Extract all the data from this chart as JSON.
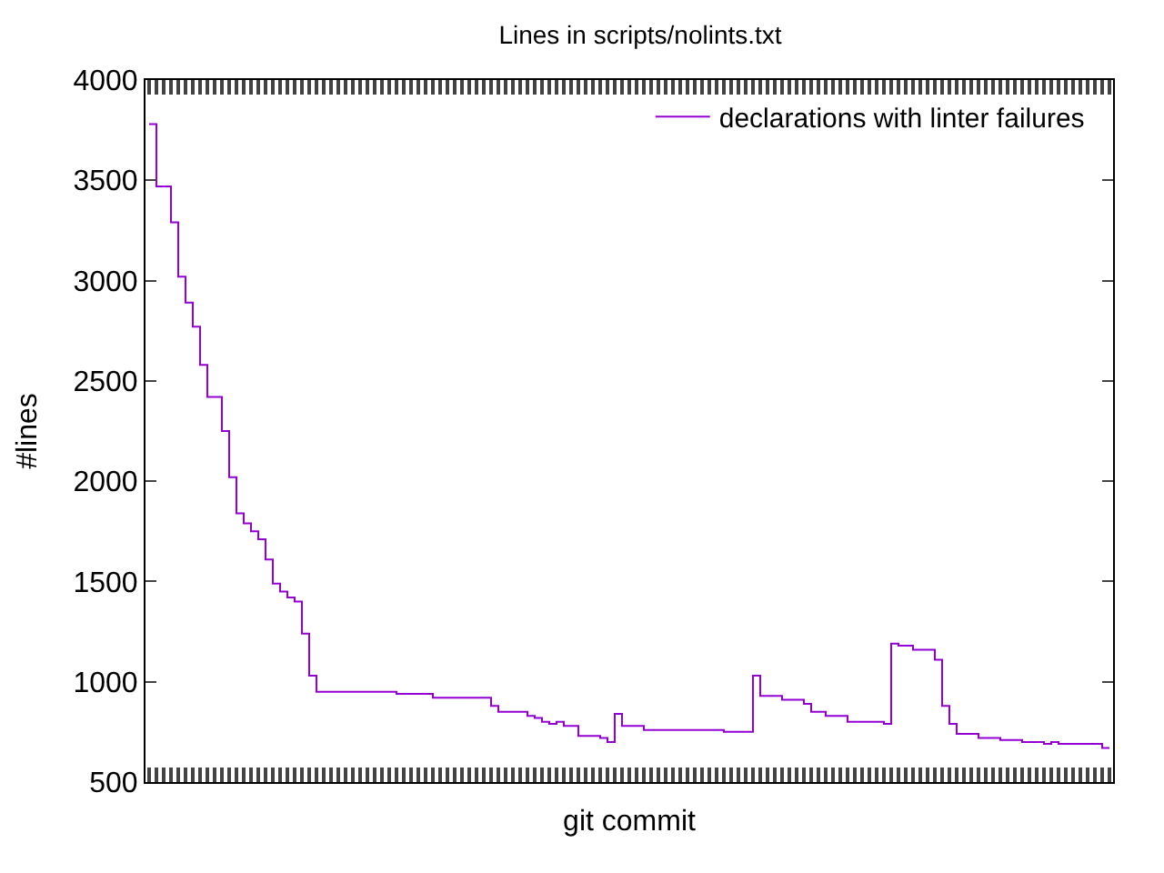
{
  "chart_data": {
    "type": "step",
    "title": "Lines in scripts/nolints.txt",
    "xlabel": "git commit",
    "ylabel": "#lines",
    "categories": [
      null,
      null,
      null,
      null,
      null,
      null,
      null,
      null,
      null,
      null,
      null,
      null,
      null,
      null,
      null,
      null,
      null,
      null,
      null,
      null,
      null,
      null,
      null,
      null,
      null,
      null,
      null,
      null,
      null,
      null,
      null,
      null,
      null,
      null,
      null,
      null,
      null,
      null,
      null,
      null,
      null,
      null,
      null,
      null,
      null,
      null,
      null,
      null,
      null,
      null,
      null,
      null,
      null,
      null,
      null,
      null,
      null,
      null,
      null,
      null,
      null,
      null,
      null,
      null,
      null,
      null,
      null,
      null,
      null,
      null,
      null,
      null,
      null,
      null,
      null,
      null,
      null,
      null,
      null,
      null,
      null,
      null,
      null,
      null,
      null,
      null,
      null,
      null,
      null,
      null,
      null,
      null,
      null,
      null,
      null,
      null,
      null,
      null,
      null,
      null,
      null,
      null,
      null,
      null,
      null,
      null,
      null,
      null,
      null,
      null,
      null,
      null,
      null,
      null,
      null,
      null,
      null,
      null,
      null,
      null,
      null,
      null,
      null,
      null,
      null,
      null,
      null,
      null,
      null,
      null,
      null,
      null,
      null
    ],
    "series": [
      {
        "name": "declarations with linter failures",
        "color": "#9400d3",
        "values": [
          3780,
          3470,
          3470,
          3290,
          3020,
          2890,
          2770,
          2580,
          2420,
          2420,
          2250,
          2020,
          1840,
          1790,
          1750,
          1710,
          1610,
          1490,
          1450,
          1420,
          1400,
          1240,
          1030,
          950,
          950,
          950,
          950,
          950,
          950,
          950,
          950,
          950,
          950,
          950,
          940,
          940,
          940,
          940,
          940,
          920,
          920,
          920,
          920,
          920,
          920,
          920,
          920,
          880,
          850,
          850,
          850,
          850,
          830,
          820,
          800,
          790,
          800,
          780,
          780,
          730,
          730,
          730,
          720,
          700,
          840,
          780,
          780,
          780,
          760,
          760,
          760,
          760,
          760,
          760,
          760,
          760,
          760,
          760,
          760,
          750,
          750,
          750,
          750,
          1030,
          930,
          930,
          930,
          910,
          910,
          910,
          890,
          850,
          850,
          830,
          830,
          830,
          800,
          800,
          800,
          800,
          800,
          790,
          1190,
          1180,
          1180,
          1160,
          1160,
          1160,
          1110,
          880,
          790,
          740,
          740,
          740,
          720,
          720,
          720,
          710,
          710,
          710,
          700,
          700,
          700,
          690,
          700,
          690,
          690,
          690,
          690,
          690,
          690,
          670,
          670
        ]
      }
    ],
    "ylim": [
      500,
      4000
    ],
    "yticks": [
      500,
      1000,
      1500,
      2000,
      2500,
      3000,
      3500,
      4000
    ],
    "tick_labels": "y",
    "legend": "top right",
    "marker": "none",
    "line_style": "solid"
  }
}
